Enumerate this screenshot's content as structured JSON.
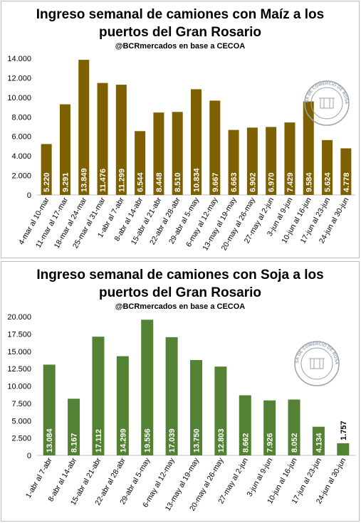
{
  "chart_data": [
    {
      "type": "bar",
      "title_line1": "Ingreso semanal de camiones con Maíz a los",
      "title_line2": "puertos del Gran Rosario",
      "subtitle": "@BCRmercados en base a CECOA",
      "categories": [
        "4-mar al 10-mar",
        "11-mar al 17-mar",
        "18-mar al 24-mar",
        "25-mar al 31-mar",
        "1-abr al 7-abr",
        "8-abr al 14-abr",
        "15-abr al 21-abr",
        "22-abr al 28-abr",
        "29-abr al 5-may",
        "6-may al 12-may",
        "13-may al 19-may",
        "20-may al 26-may",
        "27-may al 2-jun",
        "3-jun al 9-jun",
        "10-jun al 16-jun",
        "17-jun al 23-jun",
        "24-jun al 30-jun"
      ],
      "values": [
        5220,
        9291,
        13849,
        11476,
        11299,
        6544,
        8448,
        8510,
        10834,
        9667,
        6663,
        6902,
        6970,
        7429,
        9584,
        5624,
        4778
      ],
      "value_labels": [
        "5.220",
        "9.291",
        "13.849",
        "11.476",
        "11.299",
        "6.544",
        "8.448",
        "8.510",
        "10.834",
        "9.667",
        "6.663",
        "6.902",
        "6.970",
        "7.429",
        "9.584",
        "5.624",
        "4.778"
      ],
      "ylim": [
        0,
        14000
      ],
      "yticks": [
        0,
        2000,
        4000,
        6000,
        8000,
        10000,
        12000,
        14000
      ],
      "ytick_labels": [
        "0",
        "2.000",
        "4.000",
        "6.000",
        "8.000",
        "10.000",
        "12.000",
        "14.000"
      ],
      "grid": false,
      "color": "#7f6000"
    },
    {
      "type": "bar",
      "title_line1": "Ingreso semanal de camiones con Soja a los",
      "title_line2": "puertos del Gran Rosario",
      "subtitle": "@BCRmercados en base a CECOA",
      "categories": [
        "1-abr al 7-abr",
        "8-abr al 14-abr",
        "15-abr al 21-abr",
        "22-abr al 28-abr",
        "29-abr al 5-may",
        "6-may al 12-may",
        "13-may al 19-may",
        "20-may al 26-may",
        "27-may al 2-jun",
        "3-jun al 9-jun",
        "10-jun al 16-jun",
        "17-jun al 23-jun",
        "24-jun al 30-jun"
      ],
      "values": [
        13084,
        8167,
        17112,
        14299,
        19556,
        17039,
        13750,
        12803,
        8662,
        7926,
        8052,
        4134,
        1757
      ],
      "value_labels": [
        "13.084",
        "8.167",
        "17.112",
        "14.299",
        "19.556",
        "17.039",
        "13.750",
        "12.803",
        "8.662",
        "7.926",
        "8.052",
        "4.134",
        "1.757"
      ],
      "ylim": [
        0,
        20000
      ],
      "yticks": [
        0,
        2500,
        5000,
        7500,
        10000,
        12500,
        15000,
        17500,
        20000
      ],
      "ytick_labels": [
        "0",
        "2.500",
        "5.000",
        "7.500",
        "10.000",
        "12.500",
        "15.000",
        "17.500",
        "20.000"
      ],
      "grid": false,
      "color": "#548235"
    }
  ],
  "seal": {
    "text": "BOLSA DE COMERCIO DE ROSARIO",
    "color": "#9aa3ad"
  }
}
